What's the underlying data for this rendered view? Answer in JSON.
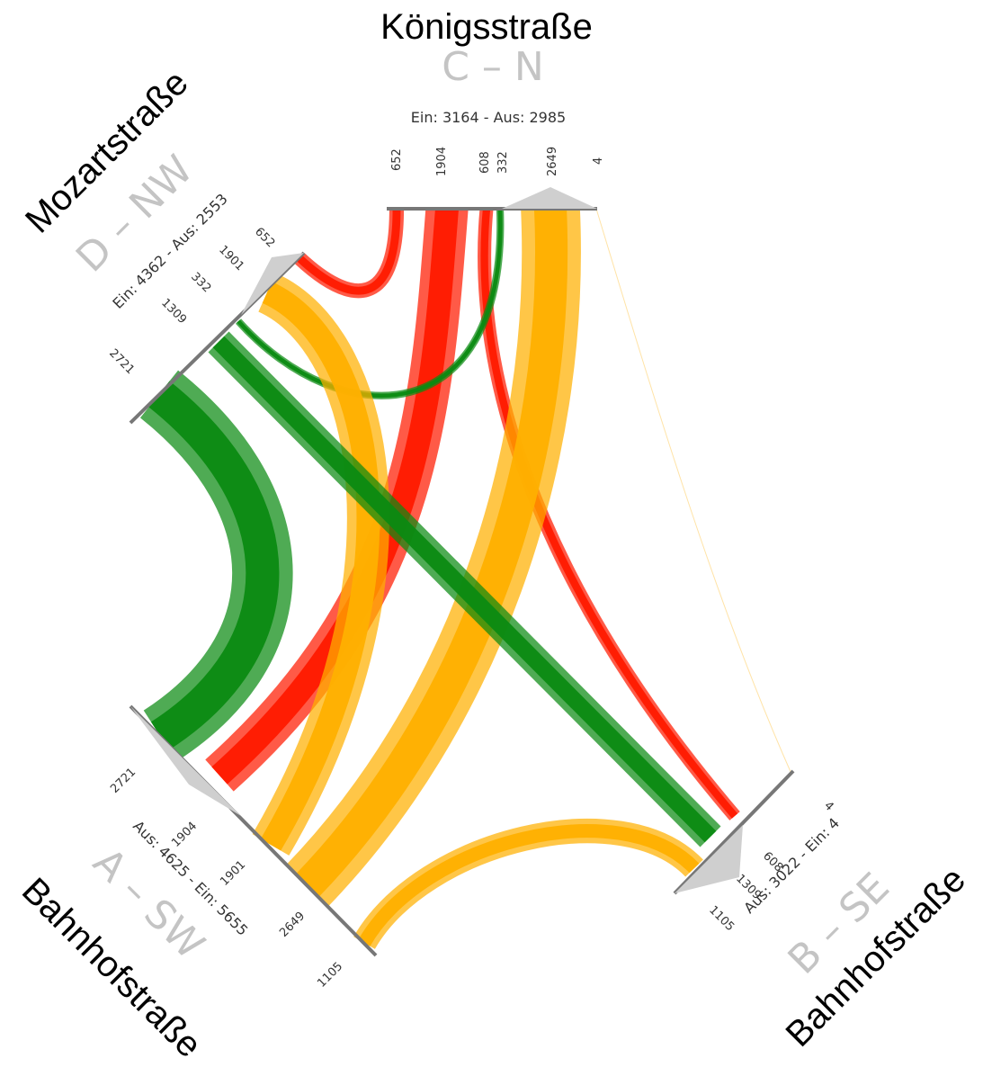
{
  "colors": {
    "red": "#ff1a00",
    "orange": "#ffb000",
    "green": "#0b8a12",
    "arm_line": "#777777",
    "arrow": "#cfcfcf",
    "arm_id": "#c4c4c4"
  },
  "arms": {
    "north": {
      "street": "Königsstraße",
      "id": "C – N",
      "stats": "Ein: 3164 - Aus: 2985",
      "tick_labels": [
        "652",
        "1904",
        "608",
        "332",
        "2649",
        "4"
      ]
    },
    "northwest": {
      "street": "Mozartstraße",
      "id": "D – NW",
      "stats": "Ein: 4362 - Aus: 2553",
      "tick_labels": [
        "652",
        "1901",
        "332",
        "1309",
        "2721"
      ]
    },
    "southwest": {
      "street": "Bahnhofstraße",
      "id": "A – SW",
      "stats": "Aus: 4625 - Ein: 5655",
      "tick_labels": [
        "2721",
        "1904",
        "1901",
        "2649",
        "1105"
      ]
    },
    "southeast": {
      "street": "Bahnhofstraße",
      "id": "B – SE",
      "stats": "Aus: 3022 - Ein: 4",
      "tick_labels": [
        "4",
        "608",
        "1309",
        "1105"
      ]
    }
  },
  "chart_data": {
    "type": "chord",
    "flows": [
      {
        "from": "C – N",
        "to": "D – NW",
        "value": 652,
        "color": "red"
      },
      {
        "from": "C – N",
        "to": "A – SW",
        "value": 1904,
        "color": "red"
      },
      {
        "from": "C – N",
        "to": "B – SE",
        "value": 608,
        "color": "red"
      },
      {
        "from": "D – NW",
        "to": "C – N",
        "value": 332,
        "color": "green"
      },
      {
        "from": "A – SW",
        "to": "C – N",
        "value": 2649,
        "color": "orange"
      },
      {
        "from": "B – SE",
        "to": "C – N",
        "value": 4,
        "color": "orange"
      },
      {
        "from": "A – SW",
        "to": "D – NW",
        "value": 1901,
        "color": "orange"
      },
      {
        "from": "D – NW",
        "to": "B – SE",
        "value": 1309,
        "color": "green"
      },
      {
        "from": "D – NW",
        "to": "A – SW",
        "value": 2721,
        "color": "green"
      },
      {
        "from": "A – SW",
        "to": "B – SE",
        "value": 1105,
        "color": "orange"
      }
    ]
  }
}
